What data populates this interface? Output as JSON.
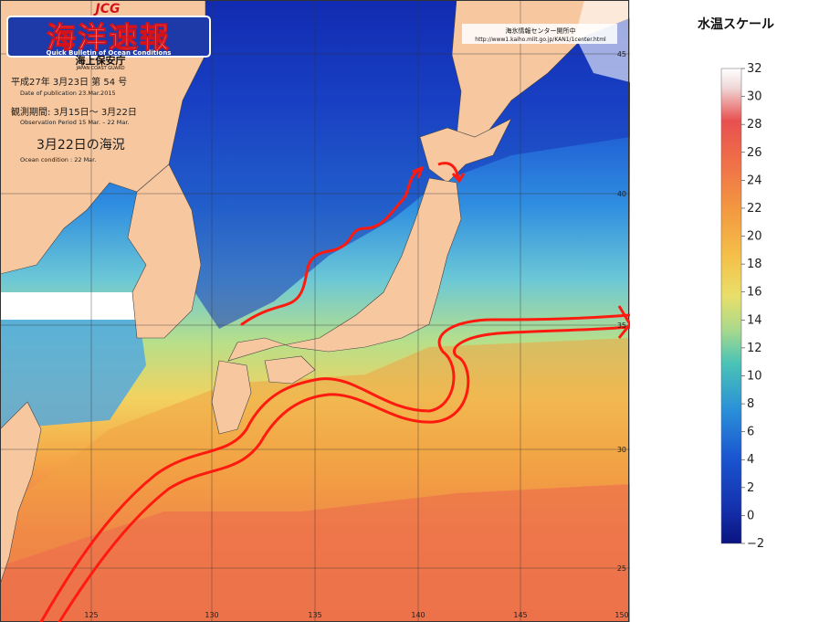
{
  "header": {
    "logo_mark": "JCG",
    "title_main": "海洋速報",
    "title_en": "Quick Bulletin of Ocean Conditions",
    "agency": "海上保安庁",
    "agency_en": "JAPAN COAST GUARD",
    "issue_line": "平成27年  3月23日 第 54  号",
    "pub_date_line": "Date of publication    23.Mar.2015",
    "obs_period_line": "観測期間:  3月15日～  3月22日",
    "obs_period_en": "Observation Period     15 Mar. – 22 Mar.",
    "condition_title": "3月22日の海況",
    "condition_en": "Ocean condition :  22 Mar."
  },
  "source": {
    "center": "海氷情報センター開所中",
    "url": "http://www1.kaiho.mlit.go.jp/KAN1/1center.html"
  },
  "map": {
    "lon_labels": [
      "125",
      "130",
      "135",
      "140",
      "145",
      "150"
    ],
    "lat_labels": [
      "45",
      "40",
      "35",
      "30",
      "25"
    ]
  },
  "scale": {
    "title": "水温スケール",
    "ticks": [
      "32",
      "30",
      "28",
      "26",
      "24",
      "22",
      "20",
      "18",
      "16",
      "14",
      "12",
      "10",
      "8",
      "6",
      "4",
      "2",
      "0",
      "−2"
    ],
    "min": -2,
    "max": 32
  },
  "colors": {
    "land": "#f7c8a0",
    "current": "#ff1a10"
  }
}
